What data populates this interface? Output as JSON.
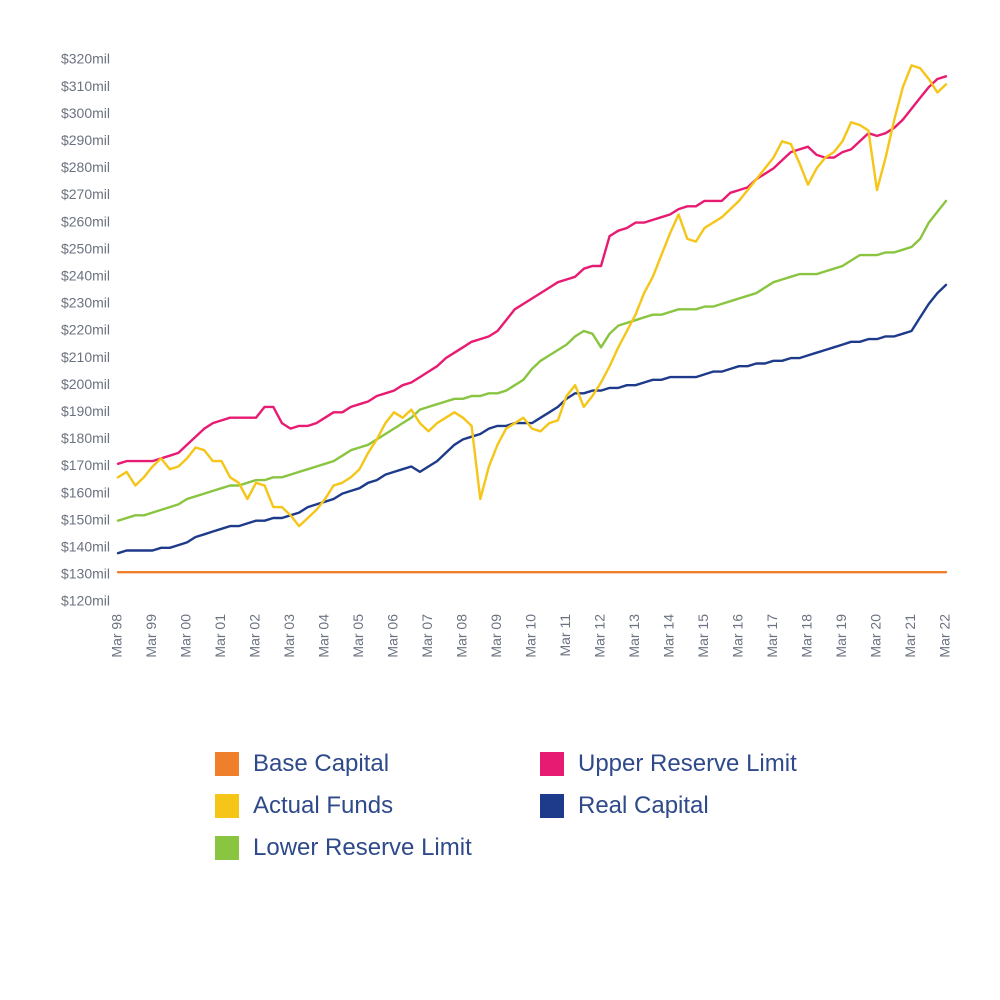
{
  "chart": {
    "type": "line",
    "background_color": "#ffffff",
    "axis_text_color": "#6b7280",
    "axis_fontsize": 14,
    "legend_fontsize": 24,
    "legend_text_color": "#2f4a8a",
    "line_width": 2.4,
    "xlim": [
      0,
      96
    ],
    "ylim": [
      120,
      320
    ],
    "ytick_step": 10,
    "ytick_labels": [
      "$120mil",
      "$130mil",
      "$140mil",
      "$150mil",
      "$160mil",
      "$170mil",
      "$180mil",
      "$190mil",
      "$200mil",
      "$210mil",
      "$220mil",
      "$230mil",
      "$240mil",
      "$250mil",
      "$260mil",
      "$270mil",
      "$280mil",
      "$290mil",
      "$300mil",
      "$310mil",
      "$320mil"
    ],
    "xtick_positions": [
      0,
      4,
      8,
      12,
      16,
      20,
      24,
      28,
      32,
      36,
      40,
      44,
      48,
      52,
      56,
      60,
      64,
      68,
      72,
      76,
      80,
      84,
      88,
      92,
      96
    ],
    "xtick_labels": [
      "Mar 98",
      "Mar 99",
      "Mar 00",
      "Mar 01",
      "Mar 02",
      "Mar 03",
      "Mar 04",
      "Mar 05",
      "Mar 06",
      "Mar 07",
      "Mar 08",
      "Mar 09",
      "Mar 10",
      "Mar 11",
      "Mar 12",
      "Mar 13",
      "Mar 14",
      "Mar 15",
      "Mar 16",
      "Mar 17",
      "Mar 18",
      "Mar 19",
      "Mar 20",
      "Mar 21",
      "Mar 22"
    ],
    "series": {
      "base_capital": {
        "label": "Base Capital",
        "color": "#f07f2b",
        "values": [
          131,
          131,
          131,
          131,
          131,
          131,
          131,
          131,
          131,
          131,
          131,
          131,
          131,
          131,
          131,
          131,
          131,
          131,
          131,
          131,
          131,
          131,
          131,
          131,
          131,
          131,
          131,
          131,
          131,
          131,
          131,
          131,
          131,
          131,
          131,
          131,
          131,
          131,
          131,
          131,
          131,
          131,
          131,
          131,
          131,
          131,
          131,
          131,
          131,
          131,
          131,
          131,
          131,
          131,
          131,
          131,
          131,
          131,
          131,
          131,
          131,
          131,
          131,
          131,
          131,
          131,
          131,
          131,
          131,
          131,
          131,
          131,
          131,
          131,
          131,
          131,
          131,
          131,
          131,
          131,
          131,
          131,
          131,
          131,
          131,
          131,
          131,
          131,
          131,
          131,
          131,
          131,
          131,
          131,
          131,
          131,
          131
        ]
      },
      "upper_reserve": {
        "label": "Upper Reserve Limit",
        "color": "#e81b72",
        "values": [
          171,
          172,
          172,
          172,
          172,
          173,
          174,
          175,
          178,
          181,
          184,
          186,
          187,
          188,
          188,
          188,
          188,
          192,
          192,
          186,
          184,
          185,
          185,
          186,
          188,
          190,
          190,
          192,
          193,
          194,
          196,
          197,
          198,
          200,
          201,
          203,
          205,
          207,
          210,
          212,
          214,
          216,
          217,
          218,
          220,
          224,
          228,
          230,
          232,
          234,
          236,
          238,
          239,
          240,
          243,
          244,
          244,
          255,
          257,
          258,
          260,
          260,
          261,
          262,
          263,
          265,
          266,
          266,
          268,
          268,
          268,
          271,
          272,
          273,
          276,
          278,
          280,
          283,
          286,
          287,
          288,
          285,
          284,
          284,
          286,
          287,
          290,
          293,
          292,
          293,
          295,
          298,
          302,
          306,
          310,
          313,
          314
        ]
      },
      "actual_funds": {
        "label": "Actual Funds",
        "color": "#f5c518",
        "values": [
          166,
          168,
          163,
          166,
          170,
          173,
          169,
          170,
          173,
          177,
          176,
          172,
          172,
          166,
          164,
          158,
          164,
          163,
          155,
          155,
          152,
          148,
          151,
          154,
          158,
          163,
          164,
          166,
          169,
          175,
          180,
          186,
          190,
          188,
          191,
          186,
          183,
          186,
          188,
          190,
          188,
          185,
          158,
          170,
          178,
          184,
          186,
          188,
          184,
          183,
          186,
          187,
          196,
          200,
          192,
          196,
          201,
          207,
          214,
          220,
          226,
          234,
          240,
          248,
          256,
          263,
          254,
          253,
          258,
          260,
          262,
          265,
          268,
          272,
          276,
          280,
          284,
          290,
          289,
          282,
          274,
          280,
          284,
          286,
          290,
          297,
          296,
          294,
          272,
          284,
          298,
          310,
          318,
          317,
          313,
          308,
          311
        ]
      },
      "real_capital": {
        "label": "Real Capital",
        "color": "#1e3a8a",
        "values": [
          138,
          139,
          139,
          139,
          139,
          140,
          140,
          141,
          142,
          144,
          145,
          146,
          147,
          148,
          148,
          149,
          150,
          150,
          151,
          151,
          152,
          153,
          155,
          156,
          157,
          158,
          160,
          161,
          162,
          164,
          165,
          167,
          168,
          169,
          170,
          168,
          170,
          172,
          175,
          178,
          180,
          181,
          182,
          184,
          185,
          185,
          186,
          186,
          186,
          188,
          190,
          192,
          195,
          197,
          197,
          198,
          198,
          199,
          199,
          200,
          200,
          201,
          202,
          202,
          203,
          203,
          203,
          203,
          204,
          205,
          205,
          206,
          207,
          207,
          208,
          208,
          209,
          209,
          210,
          210,
          211,
          212,
          213,
          214,
          215,
          216,
          216,
          217,
          217,
          218,
          218,
          219,
          220,
          225,
          230,
          234,
          237
        ]
      },
      "lower_reserve": {
        "label": "Lower Reserve Limit",
        "color": "#89c540",
        "values": [
          150,
          151,
          152,
          152,
          153,
          154,
          155,
          156,
          158,
          159,
          160,
          161,
          162,
          163,
          163,
          164,
          165,
          165,
          166,
          166,
          167,
          168,
          169,
          170,
          171,
          172,
          174,
          176,
          177,
          178,
          180,
          182,
          184,
          186,
          188,
          191,
          192,
          193,
          194,
          195,
          195,
          196,
          196,
          197,
          197,
          198,
          200,
          202,
          206,
          209,
          211,
          213,
          215,
          218,
          220,
          219,
          214,
          219,
          222,
          223,
          224,
          225,
          226,
          226,
          227,
          228,
          228,
          228,
          229,
          229,
          230,
          231,
          232,
          233,
          234,
          236,
          238,
          239,
          240,
          241,
          241,
          241,
          242,
          243,
          244,
          246,
          248,
          248,
          248,
          249,
          249,
          250,
          251,
          254,
          260,
          264,
          268
        ]
      }
    },
    "legend_order": [
      "base_capital",
      "upper_reserve",
      "actual_funds",
      "real_capital",
      "lower_reserve"
    ]
  }
}
